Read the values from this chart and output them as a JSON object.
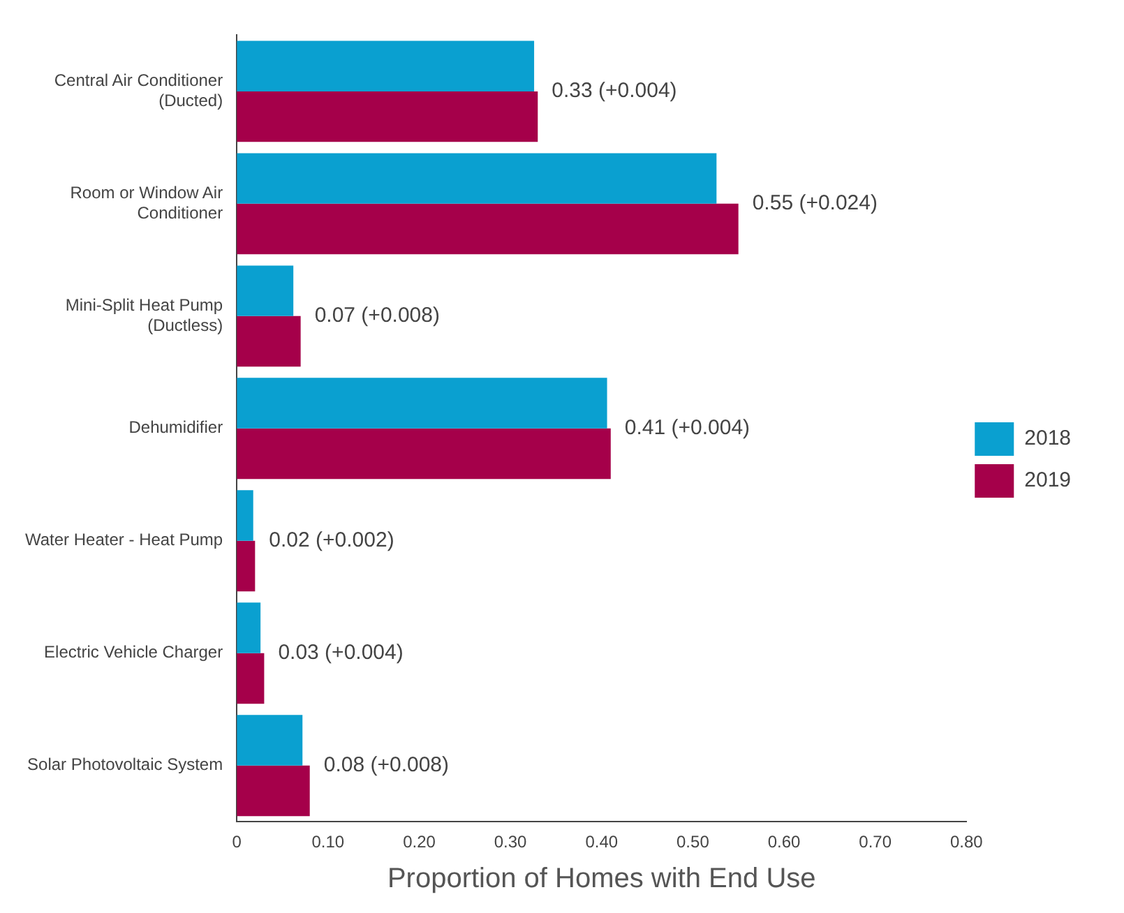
{
  "chart_data": {
    "type": "bar",
    "orientation": "horizontal",
    "xlabel": "Proportion of Homes with End Use",
    "categories": [
      [
        "Central Air Conditioner",
        "(Ducted)"
      ],
      [
        "Room or Window Air",
        "Conditioner"
      ],
      [
        "Mini-Split Heat Pump",
        "(Ductless)"
      ],
      [
        "Dehumidifier"
      ],
      [
        "Water Heater - Heat Pump"
      ],
      [
        "Electric Vehicle Charger"
      ],
      [
        "Solar Photovoltaic System"
      ]
    ],
    "series": [
      {
        "name": "2018",
        "color": "#0aa0d0",
        "values": [
          0.326,
          0.526,
          0.062,
          0.406,
          0.018,
          0.026,
          0.072
        ]
      },
      {
        "name": "2019",
        "color": "#a5004a",
        "values": [
          0.33,
          0.55,
          0.07,
          0.41,
          0.02,
          0.03,
          0.08
        ],
        "value_labels": [
          "0.33 (+0.004)",
          "0.55 (+0.024)",
          "0.07 (+0.008)",
          "0.41 (+0.004)",
          "0.02 (+0.002)",
          "0.03 (+0.004)",
          "0.08 (+0.008)"
        ]
      }
    ],
    "xlim": [
      0,
      0.8
    ],
    "xticks": [
      {
        "value": 0,
        "label": "0"
      },
      {
        "value": 0.1,
        "label": "0.10"
      },
      {
        "value": 0.2,
        "label": "0.20"
      },
      {
        "value": 0.3,
        "label": "0.30"
      },
      {
        "value": 0.4,
        "label": "0.40"
      },
      {
        "value": 0.5,
        "label": "0.50"
      },
      {
        "value": 0.6,
        "label": "0.60"
      },
      {
        "value": 0.7,
        "label": "0.70"
      },
      {
        "value": 0.8,
        "label": "0.80"
      }
    ],
    "grid": false,
    "legend": "right"
  }
}
